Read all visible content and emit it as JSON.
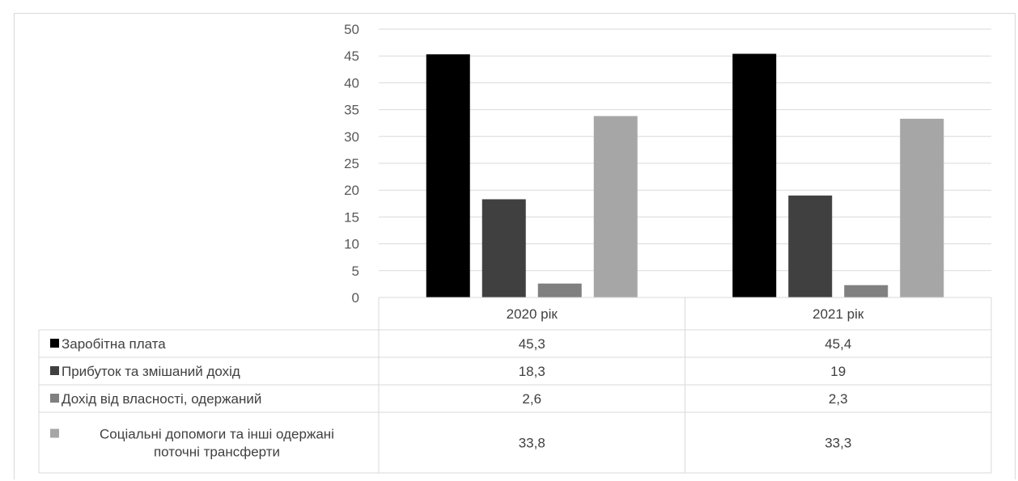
{
  "chart_data": {
    "type": "bar",
    "categories": [
      "2020 рік",
      "2021 рік"
    ],
    "series": [
      {
        "name": "Заробітна плата",
        "values": [
          45.3,
          45.4
        ],
        "labels": [
          "45,3",
          "45,4"
        ],
        "color": "#000000"
      },
      {
        "name": "Прибуток та змішаний дохід",
        "values": [
          18.3,
          19
        ],
        "labels": [
          "18,3",
          "19"
        ],
        "color": "#404040"
      },
      {
        "name": "Дохід від власності, одержаний",
        "values": [
          2.6,
          2.3
        ],
        "labels": [
          "2,6",
          "2,3"
        ],
        "color": "#808080"
      },
      {
        "name": "Соціальні допомоги та інші одержані поточні трансферти",
        "legend_lines": [
          "Соціальні допомоги та інші одержані",
          "поточні трансферти"
        ],
        "values": [
          33.8,
          33.3
        ],
        "labels": [
          "33,8",
          "33,3"
        ],
        "color": "#a6a6a6"
      }
    ],
    "ylim": [
      0,
      50
    ],
    "yticks": [
      0,
      5,
      10,
      15,
      20,
      25,
      30,
      35,
      40,
      45,
      50
    ],
    "grid": true,
    "legend": "data-table"
  }
}
